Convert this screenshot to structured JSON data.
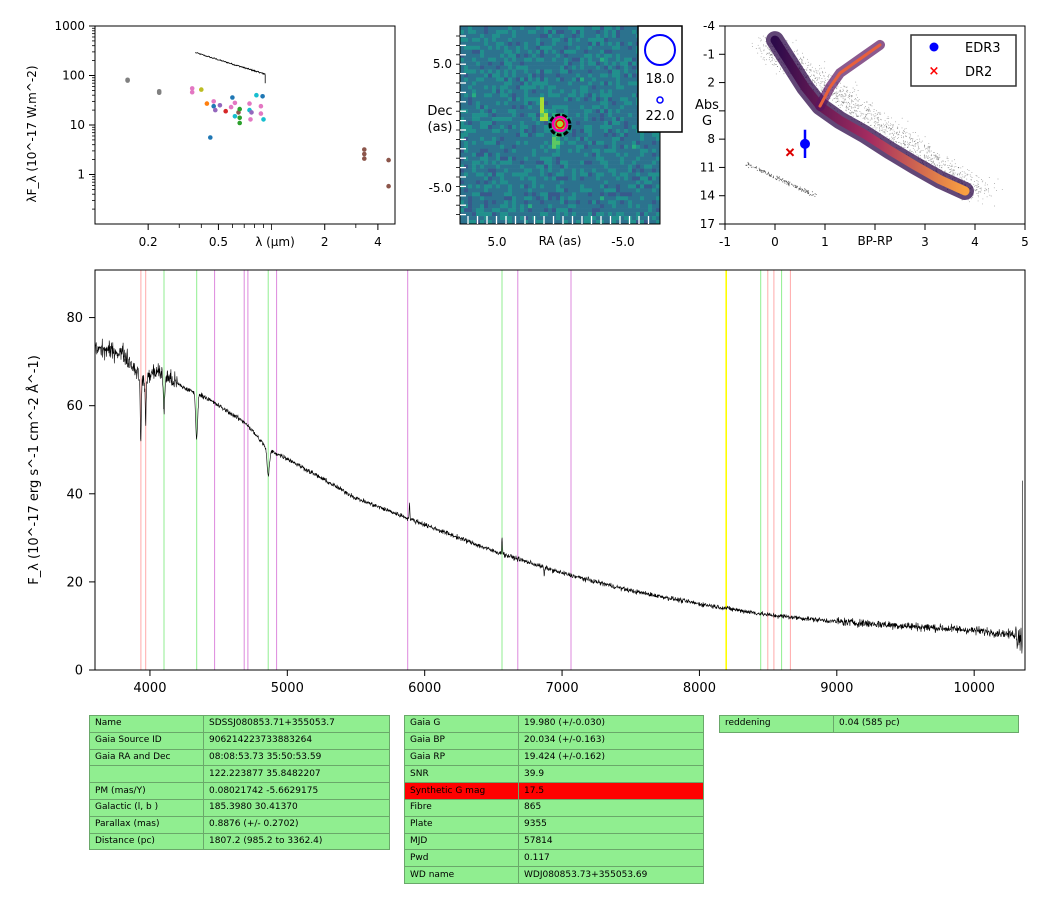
{
  "sed_panel": {
    "ylabel": "λF_λ (10^-17 W.m^-2)",
    "xlabel": "λ (μm)",
    "yticks": [
      "1000",
      "100",
      "10",
      "1"
    ],
    "xticks": [
      "0.2",
      "0.5",
      "2",
      "4"
    ],
    "photometry": [
      {
        "x": 0.153,
        "y": 82,
        "color": "#808080"
      },
      {
        "x": 0.153,
        "y": 79,
        "color": "#808080"
      },
      {
        "x": 0.231,
        "y": 48,
        "color": "#808080"
      },
      {
        "x": 0.231,
        "y": 45,
        "color": "#808080"
      },
      {
        "x": 0.355,
        "y": 55,
        "color": "#e377c2"
      },
      {
        "x": 0.355,
        "y": 46,
        "color": "#e377c2"
      },
      {
        "x": 0.4,
        "y": 52,
        "color": "#bcbd22"
      },
      {
        "x": 0.43,
        "y": 27,
        "color": "#ff7f0e"
      },
      {
        "x": 0.47,
        "y": 30,
        "color": "#e377c2"
      },
      {
        "x": 0.47,
        "y": 24,
        "color": "#1f77b4"
      },
      {
        "x": 0.48,
        "y": 20,
        "color": "#9467bd"
      },
      {
        "x": 0.45,
        "y": 5.6,
        "color": "#1f77b4"
      },
      {
        "x": 0.51,
        "y": 25,
        "color": "#9467bd"
      },
      {
        "x": 0.55,
        "y": 19,
        "color": "#d62728"
      },
      {
        "x": 0.59,
        "y": 23,
        "color": "#e377c2"
      },
      {
        "x": 0.6,
        "y": 36,
        "color": "#1f77b4"
      },
      {
        "x": 0.62,
        "y": 15,
        "color": "#17becf"
      },
      {
        "x": 0.62,
        "y": 28,
        "color": "#e377c2"
      },
      {
        "x": 0.65,
        "y": 18,
        "color": "#8c564b"
      },
      {
        "x": 0.66,
        "y": 21,
        "color": "#2ca02c"
      },
      {
        "x": 0.66,
        "y": 14,
        "color": "#2ca02c"
      },
      {
        "x": 0.66,
        "y": 11,
        "color": "#2ca02c"
      },
      {
        "x": 0.75,
        "y": 27,
        "color": "#e377c2"
      },
      {
        "x": 0.75,
        "y": 20,
        "color": "#17becf"
      },
      {
        "x": 0.76,
        "y": 13,
        "color": "#e377c2"
      },
      {
        "x": 0.77,
        "y": 18,
        "color": "#9467bd"
      },
      {
        "x": 0.82,
        "y": 40,
        "color": "#17becf"
      },
      {
        "x": 0.87,
        "y": 24,
        "color": "#e377c2"
      },
      {
        "x": 0.87,
        "y": 17,
        "color": "#e377c2"
      },
      {
        "x": 0.9,
        "y": 13,
        "color": "#17becf"
      },
      {
        "x": 0.89,
        "y": 38,
        "color": "#1f77b4"
      },
      {
        "x": 3.35,
        "y": 3.2,
        "color": "#8c564b"
      },
      {
        "x": 3.35,
        "y": 2.6,
        "color": "#8c564b"
      },
      {
        "x": 3.35,
        "y": 2.1,
        "color": "#8c564b"
      },
      {
        "x": 4.6,
        "y": 1.95,
        "color": "#8c564b"
      },
      {
        "x": 4.6,
        "y": 0.58,
        "color": "#8c564b"
      }
    ]
  },
  "image_panel": {
    "xlabel": "RA (as)",
    "ylabel": [
      "Dec",
      "(as)"
    ],
    "xticks": [
      "5.0",
      "-5.0"
    ],
    "yticks": [
      "5.0",
      "-5.0"
    ],
    "legend": [
      "18.0",
      "22.0"
    ]
  },
  "hrd_panel": {
    "xlabel": "BP-RP",
    "ylabel": [
      "Abs",
      "G"
    ],
    "xticks": [
      "-1",
      "0",
      "1",
      "3",
      "4",
      "5"
    ],
    "yticks": [
      "-4",
      "-1",
      "2",
      "5",
      "8",
      "11",
      "14",
      "17"
    ],
    "legend": [
      {
        "label": "EDR3",
        "color": "#0000ff",
        "marker": "circle"
      },
      {
        "label": "DR2",
        "color": "#ff0000",
        "marker": "x"
      }
    ],
    "points": {
      "edr3": {
        "bp_rp": 0.6,
        "absG": 8.5,
        "err": 1.5
      },
      "dr2": {
        "bp_rp": 0.3,
        "absG": 9.4
      }
    }
  },
  "spectrum_panel": {
    "ylabel": "F_λ (10^-17 erg s^-1 cm^-2 Å^-1)",
    "xticks": [
      "4000",
      "5000",
      "6000",
      "7000",
      "8000",
      "9000",
      "10000"
    ],
    "yticks": [
      "0",
      "20",
      "40",
      "60",
      "80"
    ],
    "lines": [
      {
        "w": 3934,
        "color": "#ffaaaa"
      },
      {
        "w": 3969,
        "color": "#ffaaaa"
      },
      {
        "w": 4102,
        "color": "#90ee90"
      },
      {
        "w": 4340,
        "color": "#90ee90"
      },
      {
        "w": 4471,
        "color": "#dd88dd"
      },
      {
        "w": 4686,
        "color": "#dd88dd"
      },
      {
        "w": 4713,
        "color": "#dd88dd"
      },
      {
        "w": 4861,
        "color": "#90ee90"
      },
      {
        "w": 4922,
        "color": "#dd88dd"
      },
      {
        "w": 5876,
        "color": "#dd88dd"
      },
      {
        "w": 6563,
        "color": "#90ee90"
      },
      {
        "w": 6678,
        "color": "#dd88dd"
      },
      {
        "w": 7065,
        "color": "#dd88dd"
      },
      {
        "w": 8195,
        "color": "#ffff00"
      },
      {
        "w": 8446,
        "color": "#90ee90"
      },
      {
        "w": 8498,
        "color": "#ffaaaa"
      },
      {
        "w": 8542,
        "color": "#ffaaaa"
      },
      {
        "w": 8598,
        "color": "#90ee90"
      },
      {
        "w": 8662,
        "color": "#ffaaaa"
      }
    ]
  },
  "chart_data": [
    {
      "type": "scatter",
      "ylabel": "λF_λ (10^-17 W.m^-2)",
      "xlabel": "λ (μm)",
      "xscale": "log",
      "yscale": "log",
      "xlim": [
        0.1,
        5
      ],
      "ylim": [
        0.1,
        1000
      ]
    },
    {
      "type": "heatmap",
      "xlabel": "RA (as)",
      "ylabel": "Dec (as)",
      "xlim": [
        10,
        -10
      ],
      "ylim": [
        -10,
        10
      ]
    },
    {
      "type": "scatter",
      "xlabel": "BP-RP",
      "ylabel": "Abs G",
      "xlim": [
        -1,
        5
      ],
      "ylim": [
        17,
        -4
      ]
    },
    {
      "type": "line",
      "ylabel": "F_λ (10^-17 erg s^-1 cm^-2 Å^-1)",
      "xlim": [
        3600,
        10370
      ],
      "ylim": [
        0,
        90
      ],
      "x": [
        3600,
        3800,
        3950,
        4050,
        4250,
        4400,
        4700,
        4860,
        5000,
        5500,
        6000,
        6500,
        7000,
        7500,
        8000,
        8500,
        9000,
        9500,
        10000,
        10300
      ],
      "y": [
        73,
        72,
        66,
        68,
        64,
        62,
        56,
        50,
        48,
        39,
        33,
        27,
        22,
        18,
        15,
        12.5,
        11,
        10,
        9,
        8
      ]
    }
  ],
  "table1": [
    [
      "Name",
      "SDSSJ080853.71+355053.7"
    ],
    [
      "Gaia Source ID",
      "906214223733883264"
    ],
    [
      "Gaia RA and Dec",
      "08:08:53.73    35:50:53.59"
    ],
    [
      "",
      "122.223877    35.8482207"
    ],
    [
      "PM (mas/Y)",
      "0.08021742    -5.6629175"
    ],
    [
      "Galactic (l, b )",
      "185.3980    30.41370"
    ],
    [
      "Parallax (mas)",
      "0.8876 (+/- 0.2702)"
    ],
    [
      "Distance (pc)",
      "1807.2 (985.2 to 3362.4)"
    ]
  ],
  "table2": [
    [
      "Gaia G",
      "19.980 (+/-0.030)"
    ],
    [
      "Gaia BP",
      "20.034 (+/-0.163)"
    ],
    [
      "Gaia RP",
      "19.424 (+/-0.162)"
    ],
    [
      "SNR",
      "39.9"
    ],
    [
      "Synthetic G mag",
      "17.5"
    ],
    [
      "Fibre",
      "865"
    ],
    [
      "Plate",
      "9355"
    ],
    [
      "MJD",
      "57814"
    ],
    [
      "Pwd",
      "0.117"
    ],
    [
      "WD name",
      "WDJ080853.73+355053.69"
    ]
  ],
  "table2_highlight_row": 4,
  "table3": [
    [
      "reddening",
      "0.04 (585 pc)"
    ]
  ]
}
